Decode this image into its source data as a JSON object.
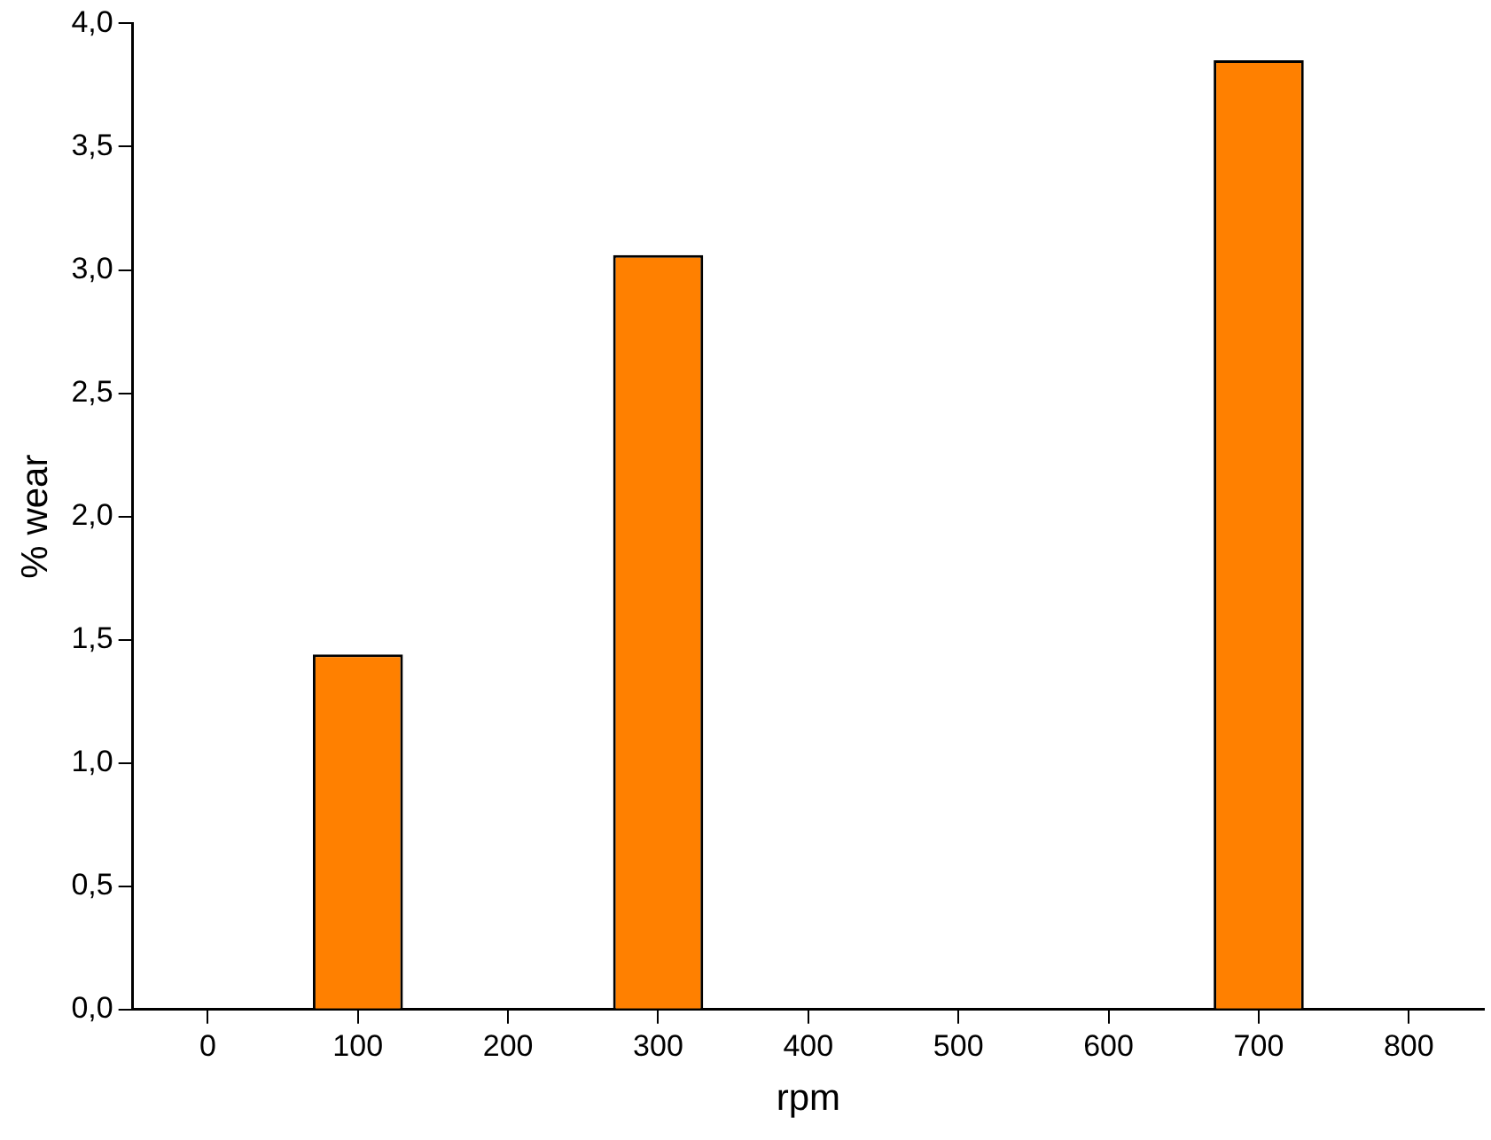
{
  "chart_data": {
    "type": "bar",
    "xlabel": "rpm",
    "ylabel": "% wear",
    "x": [
      100,
      300,
      700
    ],
    "values": [
      1.44,
      3.06,
      3.85
    ],
    "color": "#ff8000",
    "xlim": [
      -50,
      850
    ],
    "xticks": [
      0,
      100,
      200,
      300,
      400,
      500,
      600,
      700,
      800
    ],
    "ylim": [
      0,
      4
    ],
    "yticks": [
      {
        "value": 0,
        "label": "0,0"
      },
      {
        "value": 0.5,
        "label": "0,5"
      },
      {
        "value": 1,
        "label": "1,0"
      },
      {
        "value": 1.5,
        "label": "1,5"
      },
      {
        "value": 2,
        "label": "2,0"
      },
      {
        "value": 2.5,
        "label": "2,5"
      },
      {
        "value": 3,
        "label": "3,0"
      },
      {
        "value": 3.5,
        "label": "3,5"
      },
      {
        "value": 4,
        "label": "4,0"
      }
    ],
    "grid": false,
    "legend": false
  }
}
